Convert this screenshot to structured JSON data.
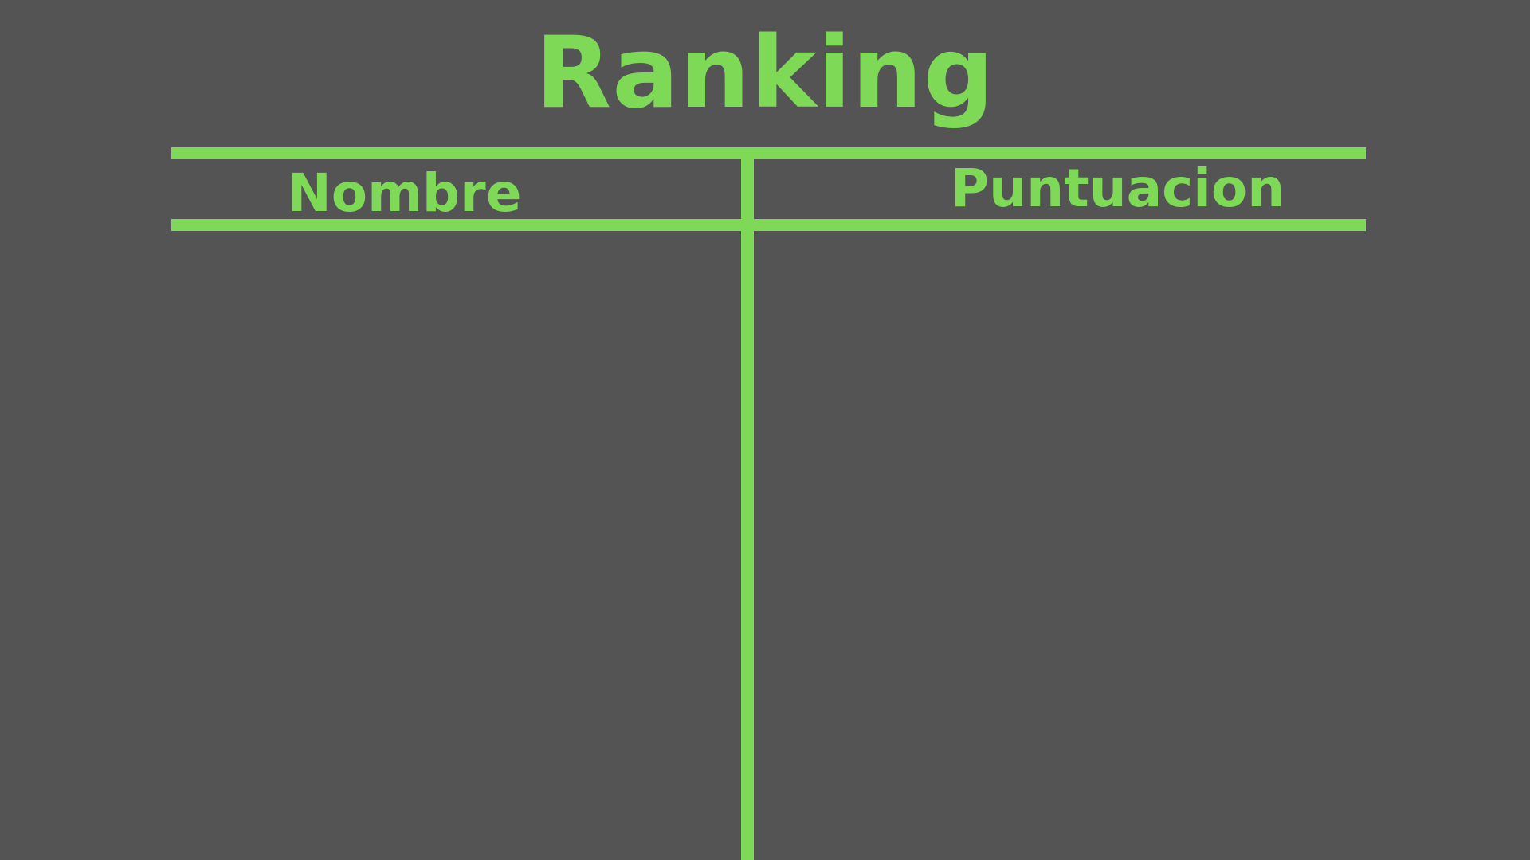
{
  "screen": {
    "title": "Ranking",
    "columns": {
      "name_header": "Nombre",
      "score_header": "Puntuacion"
    },
    "entries": []
  },
  "colors": {
    "background": "#545454",
    "accent": "#7ed957"
  }
}
